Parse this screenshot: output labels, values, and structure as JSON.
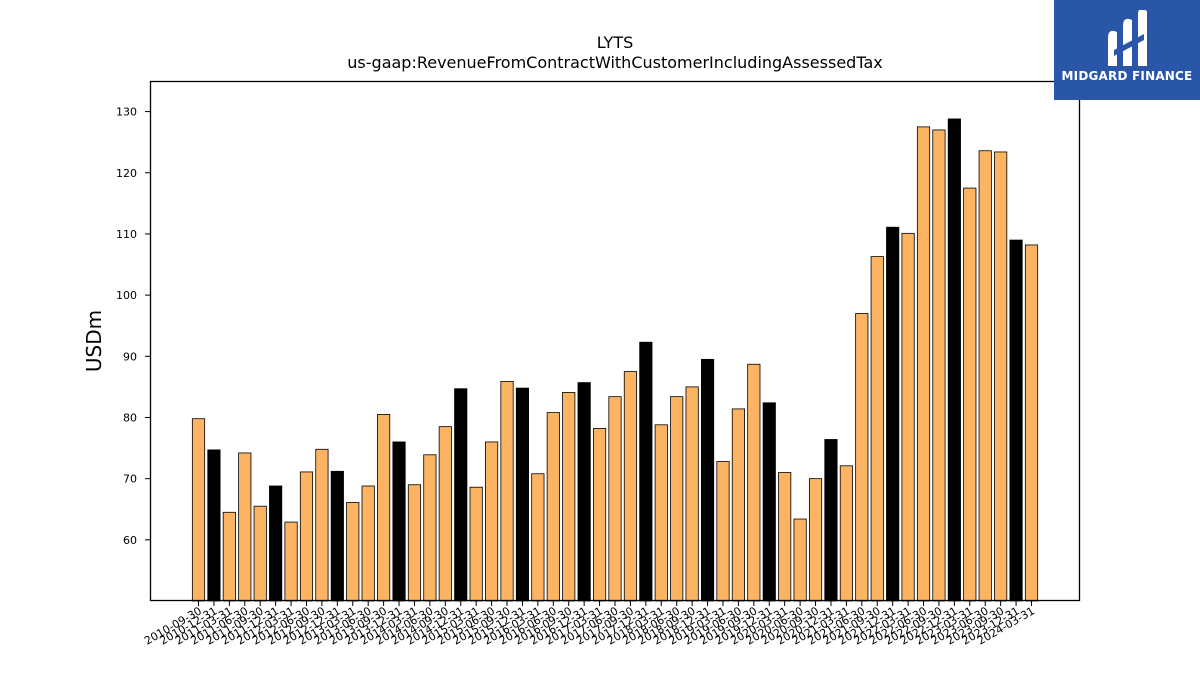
{
  "logo": {
    "text": "MIDGARD FINANCE",
    "background": "#2a56a8"
  },
  "chart_data": {
    "type": "bar",
    "title": "LYTS",
    "subtitle": "us-gaap:RevenueFromContractWithCustomerIncludingAssessedTax",
    "xlabel": "",
    "ylabel": "USDm",
    "ylim": [
      50,
      135
    ],
    "yticks": [
      60,
      70,
      80,
      90,
      100,
      110,
      120,
      130
    ],
    "grid": false,
    "colors": {
      "quarter": "#fdb462",
      "fiscal_q2": "#000000",
      "edge": "#000000"
    },
    "categories": [
      "2010-09-30",
      "2010-12-31",
      "2011-03-31",
      "2011-06-30",
      "2011-09-30",
      "2011-12-31",
      "2012-03-31",
      "2012-06-30",
      "2012-09-30",
      "2012-12-31",
      "2013-03-31",
      "2013-06-30",
      "2013-09-30",
      "2013-12-31",
      "2014-03-31",
      "2014-06-30",
      "2014-09-30",
      "2014-12-31",
      "2015-03-31",
      "2015-06-30",
      "2015-09-30",
      "2015-12-31",
      "2016-03-31",
      "2016-06-30",
      "2016-09-30",
      "2016-12-31",
      "2017-03-31",
      "2017-06-30",
      "2017-09-30",
      "2017-12-31",
      "2018-03-31",
      "2018-06-30",
      "2018-09-30",
      "2018-12-31",
      "2019-03-31",
      "2019-06-30",
      "2019-09-30",
      "2019-12-31",
      "2020-03-31",
      "2020-06-30",
      "2020-09-30",
      "2020-12-31",
      "2021-03-31",
      "2021-06-30",
      "2021-09-30",
      "2021-12-31",
      "2022-03-31",
      "2022-06-30",
      "2022-09-30",
      "2022-12-31",
      "2023-03-31",
      "2023-06-30",
      "2023-09-30",
      "2023-12-31",
      "2024-03-31"
    ],
    "values": [
      79.8,
      74.7,
      64.5,
      74.2,
      65.5,
      68.8,
      62.9,
      71.1,
      74.8,
      71.2,
      66.1,
      68.8,
      80.5,
      76.0,
      69.0,
      73.9,
      78.5,
      84.7,
      68.6,
      76.0,
      85.9,
      84.8,
      70.8,
      80.8,
      84.1,
      85.7,
      78.2,
      83.4,
      87.5,
      92.3,
      78.8,
      83.4,
      85.0,
      89.5,
      72.8,
      81.4,
      88.7,
      82.4,
      71.0,
      63.4,
      70.0,
      76.4,
      72.1,
      97.0,
      106.3,
      111.1,
      110.1,
      127.5,
      127.0,
      128.8,
      117.5,
      123.6,
      123.4,
      109.0,
      108.2
    ],
    "highlight_index": [
      1,
      5,
      9,
      13,
      17,
      21,
      25,
      29,
      33,
      37,
      41,
      45,
      49,
      53
    ]
  }
}
